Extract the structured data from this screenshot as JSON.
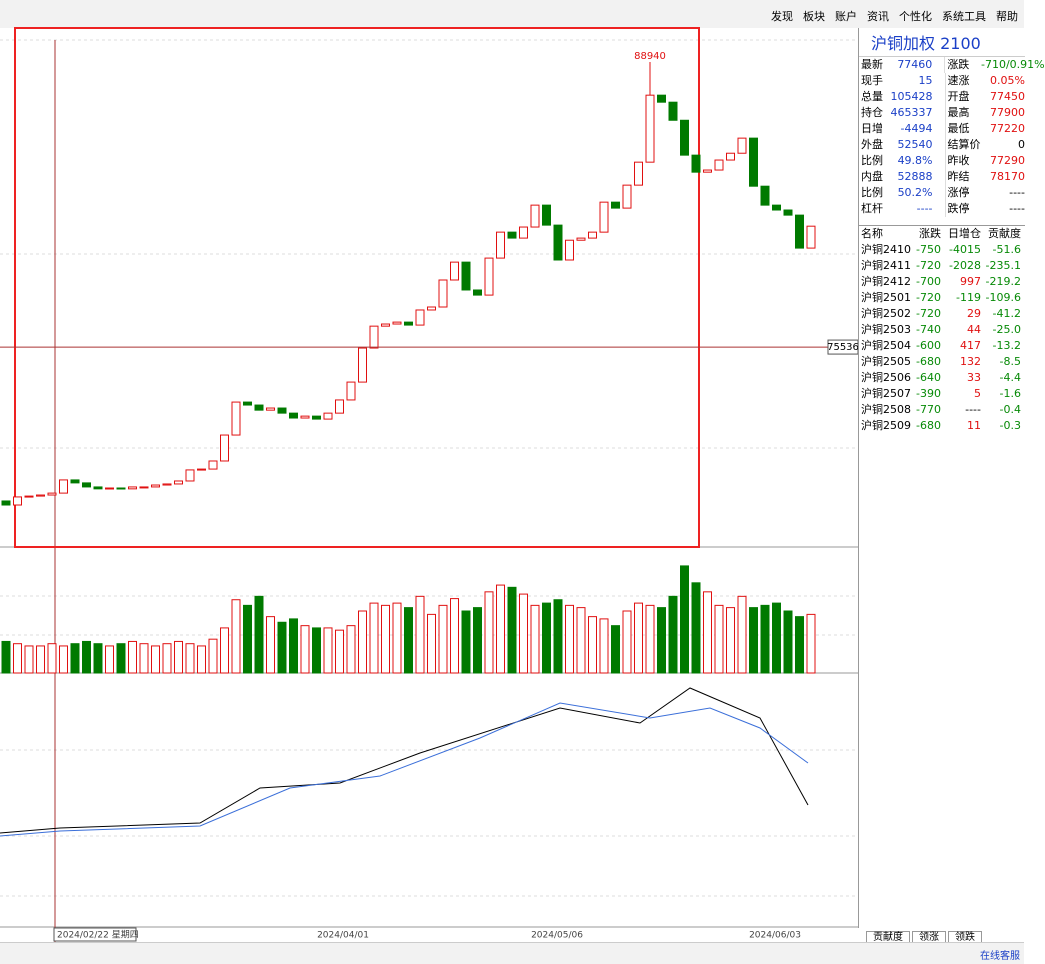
{
  "menu": [
    "发现",
    "板块",
    "账户",
    "资讯",
    "个性化",
    "系统工具",
    "帮助"
  ],
  "quote": {
    "title": "沪铜加权",
    "code": "2100",
    "rows": [
      [
        "最新",
        "77460",
        "涨跌",
        "-710/0.91%"
      ],
      [
        "现手",
        "15",
        "速涨",
        "0.05%"
      ],
      [
        "总量",
        "105428",
        "开盘",
        "77450"
      ],
      [
        "持仓",
        "465337",
        "最高",
        "77900"
      ],
      [
        "日增",
        "-4494",
        "最低",
        "77220"
      ],
      [
        "外盘",
        "52540",
        "结算价",
        "0"
      ],
      [
        "比例",
        "49.8%",
        "昨收",
        "77290"
      ],
      [
        "内盘",
        "52888",
        "昨结",
        "78170"
      ],
      [
        "比例",
        "50.2%",
        "涨停",
        "----"
      ],
      [
        "杠杆",
        "----",
        "跌停",
        "----"
      ]
    ]
  },
  "contracts": {
    "header": [
      "名称",
      "涨跌",
      "日增仓",
      "贡献度"
    ],
    "rows": [
      [
        "沪铜2410",
        "-750",
        "-4015",
        "-51.6"
      ],
      [
        "沪铜2411",
        "-720",
        "-2028",
        "-235.1"
      ],
      [
        "沪铜2412",
        "-700",
        "997",
        "-219.2"
      ],
      [
        "沪铜2501",
        "-720",
        "-119",
        "-109.6"
      ],
      [
        "沪铜2502",
        "-720",
        "29",
        "-41.2"
      ],
      [
        "沪铜2503",
        "-740",
        "44",
        "-25.0"
      ],
      [
        "沪铜2504",
        "-600",
        "417",
        "-13.2"
      ],
      [
        "沪铜2505",
        "-680",
        "132",
        "-8.5"
      ],
      [
        "沪铜2506",
        "-640",
        "33",
        "-4.4"
      ],
      [
        "沪铜2507",
        "-390",
        "5",
        "-1.6"
      ],
      [
        "沪铜2508",
        "-770",
        "----",
        "-0.4"
      ],
      [
        "沪铜2509",
        "-680",
        "11",
        "-0.3"
      ]
    ]
  },
  "tabs": [
    "贡献度",
    "领涨",
    "领跌"
  ],
  "support": "在线客服",
  "chart_data": {
    "type": "candlestick",
    "dates": [
      "2024/02/22 星期四",
      "2024/04/01",
      "2024/05/06",
      "2024/06/03"
    ],
    "ylim": [
      66230,
      89880
    ],
    "max_high": 88940,
    "crosshair_price": 75536,
    "open": [
      68300,
      68110,
      68490,
      68530,
      68580,
      68670,
      69290,
      69150,
      68960,
      68870,
      68910,
      68870,
      68960,
      68960,
      69050,
      69100,
      69240,
      69760,
      69800,
      70180,
      71400,
      72950,
      72810,
      72570,
      72670,
      72430,
      72200,
      72290,
      72150,
      72430,
      73050,
      73890,
      75490,
      76520,
      76620,
      76710,
      76570,
      77280,
      77420,
      78690,
      79530,
      78220,
      77980,
      79720,
      80940,
      80660,
      81180,
      82210,
      81270,
      79630,
      80560,
      80660,
      80940,
      82350,
      82070,
      83150,
      84230,
      87380,
      87050,
      86200,
      84560,
      83760,
      83860,
      84330,
      84650,
      85360,
      83100,
      82210,
      81980,
      81740,
      80190
    ],
    "close": [
      68110,
      68490,
      68530,
      68580,
      68670,
      69290,
      69150,
      68960,
      68870,
      68910,
      68870,
      68960,
      68960,
      69050,
      69100,
      69240,
      69760,
      69800,
      70180,
      71400,
      72950,
      72810,
      72570,
      72670,
      72430,
      72200,
      72290,
      72150,
      72430,
      73050,
      73890,
      75490,
      76520,
      76620,
      76710,
      76570,
      77280,
      77420,
      78690,
      79530,
      78220,
      77980,
      79720,
      80940,
      80660,
      81180,
      82210,
      81270,
      79630,
      80560,
      80660,
      80940,
      82350,
      82070,
      83150,
      84230,
      87380,
      87050,
      86200,
      84560,
      83760,
      83860,
      84330,
      84650,
      85360,
      83100,
      82210,
      81980,
      81740,
      80190,
      81220
    ],
    "vlim": [
      0,
      110
    ],
    "volume": [
      28,
      26,
      24,
      24,
      26,
      24,
      26,
      28,
      26,
      24,
      26,
      28,
      26,
      24,
      26,
      28,
      26,
      24,
      30,
      40,
      65,
      60,
      68,
      50,
      45,
      48,
      42,
      40,
      40,
      38,
      42,
      55,
      62,
      60,
      62,
      58,
      68,
      52,
      60,
      66,
      55,
      58,
      72,
      78,
      76,
      70,
      60,
      62,
      65,
      60,
      58,
      50,
      48,
      42,
      55,
      62,
      60,
      58,
      68,
      95,
      80,
      72,
      60,
      58,
      68,
      58,
      60,
      62,
      55,
      50,
      52
    ]
  }
}
